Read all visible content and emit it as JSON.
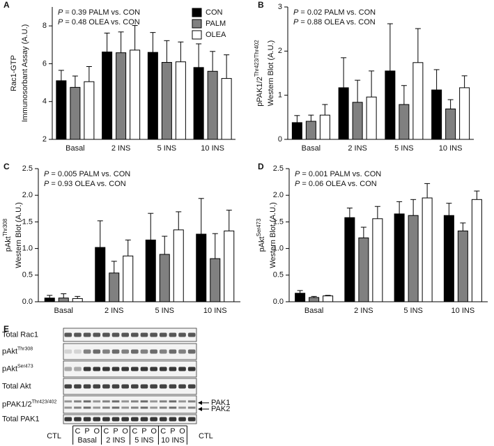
{
  "chart_data": [
    {
      "type": "bar",
      "panel": "A",
      "ylabel": [
        "Rac1-GTP",
        "Immunosorbant Assay  (A.U.)"
      ],
      "annotations": [
        "P = 0.39 PALM vs. CON",
        "P = 0.48 OLEA vs. CON"
      ],
      "categories": [
        "Basal",
        "2 INS",
        "5 INS",
        "10 INS"
      ],
      "series": [
        {
          "name": "CON",
          "color": "#000000",
          "values": [
            5.1,
            6.62,
            6.6,
            5.8
          ],
          "errors": [
            0.55,
            1.0,
            1.05,
            1.25
          ]
        },
        {
          "name": "PALM",
          "color": "#808080",
          "values": [
            4.75,
            6.58,
            6.07,
            5.6
          ],
          "errors": [
            0.6,
            1.1,
            1.15,
            1.05
          ]
        },
        {
          "name": "OLEA",
          "color": "#ffffff",
          "values": [
            5.05,
            6.72,
            6.1,
            5.22
          ],
          "errors": [
            0.8,
            1.3,
            1.05,
            1.25
          ]
        }
      ],
      "ylim": [
        2,
        9
      ],
      "yticks": [
        2,
        4,
        6,
        8
      ],
      "legend": "upper right"
    },
    {
      "type": "bar",
      "panel": "B",
      "ylabel": [
        "pPAK1/2",
        "Western Blot  (A.U.)"
      ],
      "ylabel_sup": "Thr423/Thr402",
      "annotations": [
        "P = 0.02 PALM vs. CON",
        "P = 0.88 OLEA vs. CON"
      ],
      "categories": [
        "Basal",
        "2 INS",
        "5 INS",
        "10 INS"
      ],
      "series": [
        {
          "color": "#000000",
          "values": [
            0.38,
            1.17,
            1.55,
            1.12
          ],
          "errors": [
            0.16,
            0.68,
            1.07,
            0.46
          ]
        },
        {
          "color": "#808080",
          "values": [
            0.41,
            0.84,
            0.79,
            0.69
          ],
          "errors": [
            0.14,
            0.5,
            0.43,
            0.21
          ]
        },
        {
          "color": "#ffffff",
          "values": [
            0.55,
            0.96,
            1.74,
            1.17
          ],
          "errors": [
            0.24,
            0.59,
            0.77,
            0.27
          ]
        }
      ],
      "ylim": [
        0,
        3
      ],
      "yticks": [
        0,
        1,
        2,
        3
      ]
    },
    {
      "type": "bar",
      "panel": "C",
      "ylabel": [
        "pAkt",
        "Western Blot  (A.U.)"
      ],
      "ylabel_sup": "Thr308",
      "annotations": [
        "P = 0.005 PALM vs. CON",
        "P = 0.93 OLEA vs. CON"
      ],
      "categories": [
        "Basal",
        "2 INS",
        "5 INS",
        "10 INS"
      ],
      "series": [
        {
          "color": "#000000",
          "values": [
            0.07,
            1.02,
            1.16,
            1.27
          ],
          "errors": [
            0.05,
            0.5,
            0.5,
            0.67
          ]
        },
        {
          "color": "#808080",
          "values": [
            0.07,
            0.54,
            0.89,
            0.81
          ],
          "errors": [
            0.08,
            0.22,
            0.34,
            0.47
          ]
        },
        {
          "color": "#ffffff",
          "values": [
            0.06,
            0.86,
            1.35,
            1.33
          ],
          "errors": [
            0.04,
            0.3,
            0.34,
            0.39
          ]
        }
      ],
      "ylim": [
        0,
        2.5
      ],
      "yticks": [
        {
          "value": 0,
          "label": "0.0"
        },
        0.5,
        {
          "value": 1,
          "label": "1.0"
        },
        1.5,
        {
          "value": 2,
          "label": "2.0"
        },
        2.5
      ]
    },
    {
      "type": "bar",
      "panel": "D",
      "ylabel": [
        "pAkt",
        "Western Blot  (A.U.)"
      ],
      "ylabel_sup": "Ser473",
      "annotations": [
        "P = 0.001 PALM vs. CON",
        "P = 0.06 OLEA vs. CON"
      ],
      "categories": [
        "Basal",
        "2 INS",
        "5 INS",
        "10 INS"
      ],
      "series": [
        {
          "color": "#000000",
          "values": [
            0.16,
            1.58,
            1.65,
            1.62
          ],
          "errors": [
            0.05,
            0.18,
            0.23,
            0.23
          ]
        },
        {
          "color": "#808080",
          "values": [
            0.08,
            1.2,
            1.62,
            1.33
          ],
          "errors": [
            0.02,
            0.2,
            0.3,
            0.15
          ]
        },
        {
          "color": "#ffffff",
          "values": [
            0.11,
            1.56,
            1.95,
            1.92
          ],
          "errors": [
            0.01,
            0.23,
            0.27,
            0.16
          ]
        }
      ],
      "ylim": [
        0,
        2.5
      ],
      "yticks": [
        {
          "value": 0,
          "label": "0.0"
        },
        0.5,
        {
          "value": 1,
          "label": "1.0"
        },
        1.5,
        {
          "value": 2,
          "label": "2.0"
        },
        2.5
      ]
    }
  ],
  "blot": {
    "panel": "E",
    "rows": [
      {
        "label": "Total Rac1"
      },
      {
        "label": "pAkt",
        "sup": "Thr308"
      },
      {
        "label": "pAkt",
        "sup": "Ser473"
      },
      {
        "label": "Total Akt"
      },
      {
        "label": "pPAK1/2",
        "sup": "Thr423/402"
      },
      {
        "label": "Total PAK1"
      }
    ],
    "arrows": [
      "PAK1",
      "PAK2"
    ],
    "controls": [
      "CTL",
      "CTL"
    ],
    "groups": [
      {
        "name": "Basal",
        "lanes": [
          "C",
          "P",
          "O"
        ]
      },
      {
        "name": "2 INS",
        "lanes": [
          "C",
          "P",
          "O"
        ]
      },
      {
        "name": "5 INS",
        "lanes": [
          "C",
          "P",
          "O"
        ]
      },
      {
        "name": "10 INS",
        "lanes": [
          "C",
          "P",
          "O"
        ]
      }
    ]
  }
}
